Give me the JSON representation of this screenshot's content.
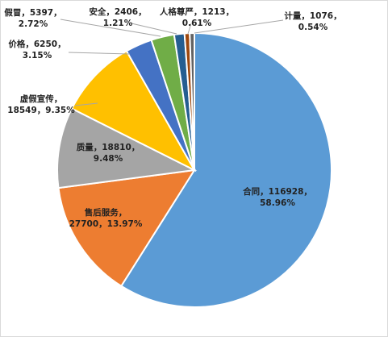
{
  "chart_data": {
    "type": "pie",
    "title": "",
    "legend": "none",
    "start_angle_deg": 0,
    "direction": "clockwise",
    "slices": [
      {
        "name": "合同",
        "value": 116928,
        "percent": "58.96%",
        "color": "#5b9bd5",
        "label_lines": [
          "合同，116928，",
          "58.96%"
        ]
      },
      {
        "name": "售后服务",
        "value": 27700,
        "percent": "13.97%",
        "color": "#ed7d31",
        "label_lines": [
          "售后服务，",
          "27700，13.97%"
        ]
      },
      {
        "name": "质量",
        "value": 18810,
        "percent": "9.48%",
        "color": "#a5a5a5",
        "label_lines": [
          "质量，18810，",
          "9.48%"
        ]
      },
      {
        "name": "虚假宣传",
        "value": 18549,
        "percent": "9.35%",
        "color": "#ffc000",
        "label_lines": [
          "虚假宣传，",
          "18549，9.35%"
        ]
      },
      {
        "name": "价格",
        "value": 6250,
        "percent": "3.15%",
        "color": "#4472c4",
        "label_lines": [
          "价格，6250，",
          "3.15%"
        ]
      },
      {
        "name": "假冒",
        "value": 5397,
        "percent": "2.72%",
        "color": "#70ad47",
        "label_lines": [
          "假冒，5397，",
          "2.72%"
        ]
      },
      {
        "name": "安全",
        "value": 2406,
        "percent": "1.21%",
        "color": "#255e91",
        "label_lines": [
          "安全，2406，",
          "1.21%"
        ]
      },
      {
        "name": "人格尊严",
        "value": 1213,
        "percent": "0.61%",
        "color": "#9e480e",
        "label_lines": [
          "人格尊严，1213，",
          "0.61%"
        ]
      },
      {
        "name": "计量",
        "value": 1076,
        "percent": "0.54%",
        "color": "#636363",
        "label_lines": [
          "计量，1076，",
          "0.54%"
        ]
      }
    ]
  }
}
